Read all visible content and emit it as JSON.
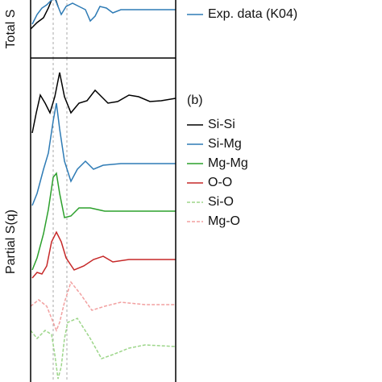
{
  "chart_data": [
    {
      "type": "line",
      "ylabel": "Total S",
      "xlim": [
        0,
        18
      ],
      "ylim": [
        0,
        80
      ],
      "vlines": [
        2.8,
        4.5
      ],
      "series": [
        {
          "color": "#000000",
          "dashed": false,
          "x": [
            0,
            0.8,
            1.6,
            2.2,
            2.6,
            3,
            3.4
          ],
          "values": [
            36,
            44,
            50,
            62,
            72,
            76,
            64
          ]
        },
        {
          "name": "Exp. data (K04)",
          "color": "#2e7bb5",
          "dashed": false,
          "x": [
            0.2,
            0.8,
            1.4,
            2,
            2.6,
            3,
            3.4,
            3.8,
            4.4,
            5.2,
            6,
            6.8,
            7.4,
            8,
            8.6,
            9.4,
            10.2,
            11.2,
            13.2,
            18
          ],
          "values": [
            42,
            54,
            62,
            66,
            72,
            74,
            64,
            54,
            64,
            68,
            64,
            60,
            46,
            52,
            64,
            62,
            56,
            60,
            60,
            60
          ]
        }
      ]
    },
    {
      "type": "line",
      "ylabel": "Partial S(q)",
      "annotation": "(b)",
      "xlim": [
        0,
        18
      ],
      "ylim": [
        0,
        402
      ],
      "vlines": [
        2.8,
        4.5
      ],
      "series": [
        {
          "name": "Si-Si",
          "color": "#000000",
          "dashed": false,
          "x": [
            0.2,
            0.7,
            1.2,
            1.8,
            2.4,
            3,
            3.6,
            4.2,
            5,
            6,
            7,
            8,
            8.8,
            9.6,
            10.8,
            12.2,
            13.4,
            14.8,
            16.2,
            18
          ],
          "values": [
            309,
            334,
            356,
            346,
            334,
            354,
            384,
            354,
            334,
            346,
            349,
            362,
            354,
            346,
            348,
            356,
            354,
            348,
            349,
            352
          ]
        },
        {
          "name": "Si-Mg",
          "color": "#2e7bb5",
          "dashed": false,
          "x": [
            0.2,
            0.8,
            1.6,
            2.2,
            2.8,
            3.2,
            3.6,
            4.2,
            5,
            5.8,
            6.8,
            7.8,
            9,
            11.2,
            18
          ],
          "values": [
            219,
            234,
            264,
            284,
            324,
            346,
            314,
            274,
            249,
            264,
            274,
            264,
            269,
            271,
            271
          ]
        },
        {
          "name": "Mg-Mg",
          "color": "#2ca02c",
          "dashed": false,
          "x": [
            0.2,
            0.8,
            1.6,
            2.2,
            2.8,
            3.2,
            3.6,
            4.2,
            5,
            6,
            7.4,
            9.2,
            12.2,
            18
          ],
          "values": [
            139,
            154,
            184,
            214,
            254,
            259,
            234,
            204,
            206,
            216,
            216,
            212,
            212,
            212
          ]
        },
        {
          "name": "O-O",
          "color": "#c62828",
          "dashed": false,
          "x": [
            0.2,
            0.8,
            1.4,
            2,
            2.6,
            3.2,
            3.8,
            4.4,
            5.4,
            6.6,
            7.8,
            9,
            10.2,
            12.2,
            18
          ],
          "values": [
            129,
            136,
            134,
            144,
            174,
            186,
            174,
            154,
            139,
            144,
            152,
            156,
            149,
            152,
            152
          ]
        },
        {
          "name": "Si-O",
          "color": "#9dd68a",
          "dashed": true,
          "x": [
            0,
            0.8,
            1.8,
            2.6,
            3,
            3.4,
            3.8,
            4.2,
            4.6,
            5.8,
            7.4,
            8.8,
            10.2,
            12.2,
            14.2,
            18
          ],
          "values": [
            64,
            54,
            64,
            59,
            34,
            4,
            19,
            54,
            74,
            79,
            54,
            29,
            34,
            42,
            46,
            44
          ]
        },
        {
          "name": "Mg-O",
          "color": "#f2a0a0",
          "dashed": true,
          "x": [
            0,
            1,
            2,
            2.6,
            3.2,
            3.6,
            4.2,
            5,
            6.2,
            7.6,
            9.2,
            11.2,
            14.2,
            18
          ],
          "values": [
            94,
            102,
            94,
            79,
            64,
            74,
            99,
            124,
            109,
            89,
            94,
            99,
            96,
            96
          ]
        }
      ]
    }
  ]
}
